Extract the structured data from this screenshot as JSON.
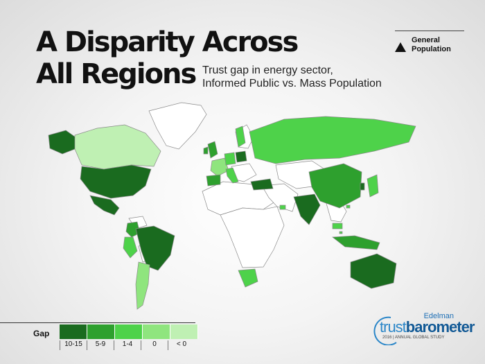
{
  "title": {
    "line1": "A Disparity Across",
    "line2": "All Regions"
  },
  "subtitle": {
    "line1": "Trust gap in energy sector,",
    "line2": "Informed Public vs. Mass Population"
  },
  "population_legend": {
    "line1": "General",
    "line2": "Population",
    "icon": "triangle-icon"
  },
  "gap_legend": {
    "title": "Gap",
    "bins": [
      {
        "label": "10-15",
        "color": "#1a6b1f"
      },
      {
        "label": "5-9",
        "color": "#2ea02e"
      },
      {
        "label": "1-4",
        "color": "#4ed24a"
      },
      {
        "label": "0",
        "color": "#8fe57e"
      },
      {
        "label": "< 0",
        "color": "#bff0b3"
      }
    ]
  },
  "map_colors": {
    "no_data": "#ffffff",
    "border": "#8a8a8a"
  },
  "regions": [
    {
      "name": "Alaska",
      "gap_bin": "10-15"
    },
    {
      "name": "Canada",
      "gap_bin": "< 0"
    },
    {
      "name": "United States",
      "gap_bin": "10-15"
    },
    {
      "name": "Mexico",
      "gap_bin": "10-15"
    },
    {
      "name": "Colombia",
      "gap_bin": "5-9"
    },
    {
      "name": "Peru",
      "gap_bin": "1-4"
    },
    {
      "name": "Brazil",
      "gap_bin": "10-15"
    },
    {
      "name": "Argentina",
      "gap_bin": "0"
    },
    {
      "name": "United Kingdom",
      "gap_bin": "5-9"
    },
    {
      "name": "Ireland",
      "gap_bin": "5-9"
    },
    {
      "name": "France",
      "gap_bin": "0"
    },
    {
      "name": "Spain",
      "gap_bin": "5-9"
    },
    {
      "name": "Germany",
      "gap_bin": "1-4"
    },
    {
      "name": "Italy",
      "gap_bin": "1-4"
    },
    {
      "name": "Poland",
      "gap_bin": "10-15"
    },
    {
      "name": "Sweden",
      "gap_bin": "1-4"
    },
    {
      "name": "Russia",
      "gap_bin": "1-4"
    },
    {
      "name": "Turkey",
      "gap_bin": "10-15"
    },
    {
      "name": "UAE",
      "gap_bin": "1-4"
    },
    {
      "name": "India",
      "gap_bin": "10-15"
    },
    {
      "name": "China",
      "gap_bin": "5-9"
    },
    {
      "name": "Japan",
      "gap_bin": "1-4"
    },
    {
      "name": "South Korea",
      "gap_bin": "10-15"
    },
    {
      "name": "Hong Kong",
      "gap_bin": "1-4"
    },
    {
      "name": "Malaysia",
      "gap_bin": "1-4"
    },
    {
      "name": "Singapore",
      "gap_bin": "1-4"
    },
    {
      "name": "Indonesia",
      "gap_bin": "5-9"
    },
    {
      "name": "South Africa",
      "gap_bin": "1-4"
    },
    {
      "name": "Australia",
      "gap_bin": "10-15"
    }
  ],
  "brand": {
    "edelman": "Edelman",
    "trust": "trust",
    "barometer": "barometer",
    "study": "2016 | ANNUAL GLOBAL STUDY"
  }
}
